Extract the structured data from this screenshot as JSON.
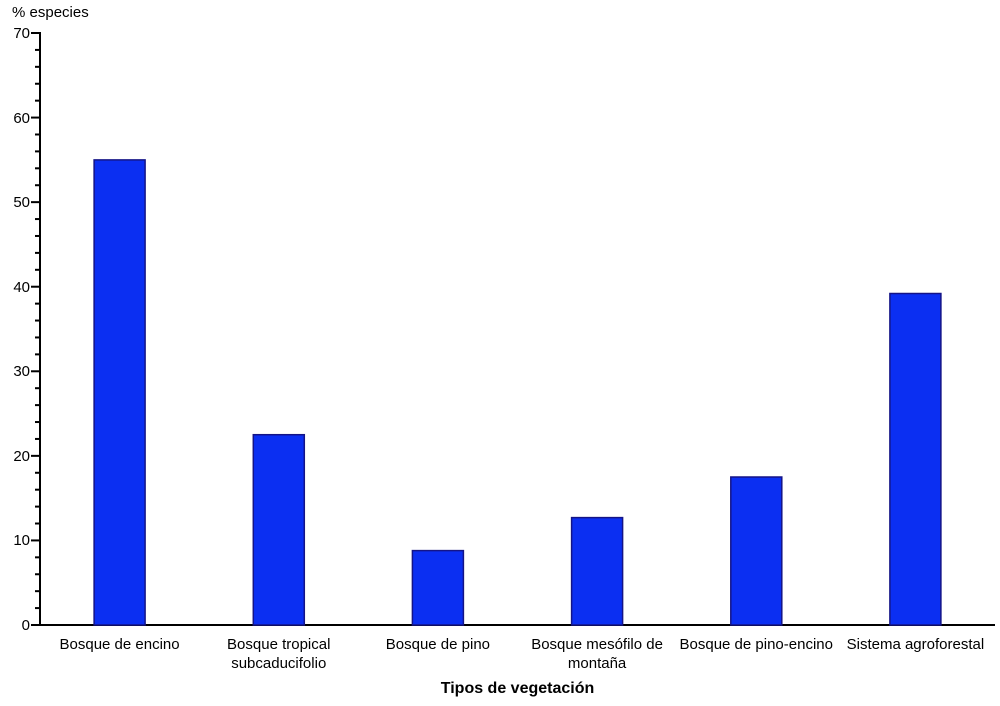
{
  "chart_data": {
    "type": "bar",
    "title": "",
    "ylabel": "% especies",
    "xlabel": "Tipos de vegetación",
    "categories": [
      "Bosque de encino",
      "Bosque tropical subcaducifolio",
      "Bosque de pino",
      "Bosque mesófilo de montaña",
      "Bosque de pino-encino",
      "Sistema agroforestal"
    ],
    "values": [
      55,
      22.5,
      8.8,
      12.7,
      17.5,
      39.2
    ],
    "ylim": [
      0,
      70
    ],
    "ytick_major_step": 10,
    "ytick_minor_step": 2,
    "ytick_labels": [
      "0",
      "10",
      "20",
      "30",
      "40",
      "50",
      "60",
      "70"
    ],
    "grid": false,
    "legend": null,
    "bar_fill_color": "#0b2ff2",
    "bar_border_color": "#141487",
    "axis_color": "#000000",
    "text_color": "#000000",
    "background_color": "#ffffff"
  }
}
